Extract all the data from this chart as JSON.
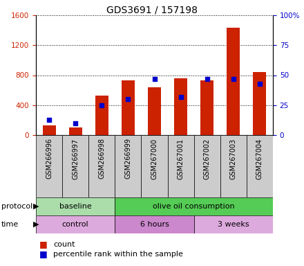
{
  "title": "GDS3691 / 157198",
  "samples": [
    "GSM266996",
    "GSM266997",
    "GSM266998",
    "GSM266999",
    "GSM267000",
    "GSM267001",
    "GSM267002",
    "GSM267003",
    "GSM267004"
  ],
  "counts": [
    130,
    100,
    530,
    730,
    640,
    760,
    730,
    1430,
    840
  ],
  "percentile_ranks": [
    13,
    10,
    25,
    30,
    47,
    32,
    47,
    47,
    43
  ],
  "ylim_left": [
    0,
    1600
  ],
  "ylim_right": [
    0,
    100
  ],
  "yticks_left": [
    0,
    400,
    800,
    1200,
    1600
  ],
  "yticks_right": [
    0,
    25,
    50,
    75,
    100
  ],
  "bar_color": "#cc2200",
  "marker_color": "#0000cc",
  "protocol_groups": [
    {
      "label": "baseline",
      "start": 0,
      "end": 3,
      "color": "#aaddaa"
    },
    {
      "label": "olive oil consumption",
      "start": 3,
      "end": 9,
      "color": "#55cc55"
    }
  ],
  "time_groups": [
    {
      "label": "control",
      "start": 0,
      "end": 3,
      "color": "#ddaadd"
    },
    {
      "label": "6 hours",
      "start": 3,
      "end": 6,
      "color": "#cc88cc"
    },
    {
      "label": "3 weeks",
      "start": 6,
      "end": 9,
      "color": "#ddaadd"
    }
  ],
  "legend_count_label": "count",
  "legend_pct_label": "percentile rank within the sample",
  "left_axis_color": "#cc2200",
  "right_axis_color": "#0000cc",
  "background_color": "#ffffff",
  "tick_label_bg": "#cccccc",
  "bar_width": 0.5
}
